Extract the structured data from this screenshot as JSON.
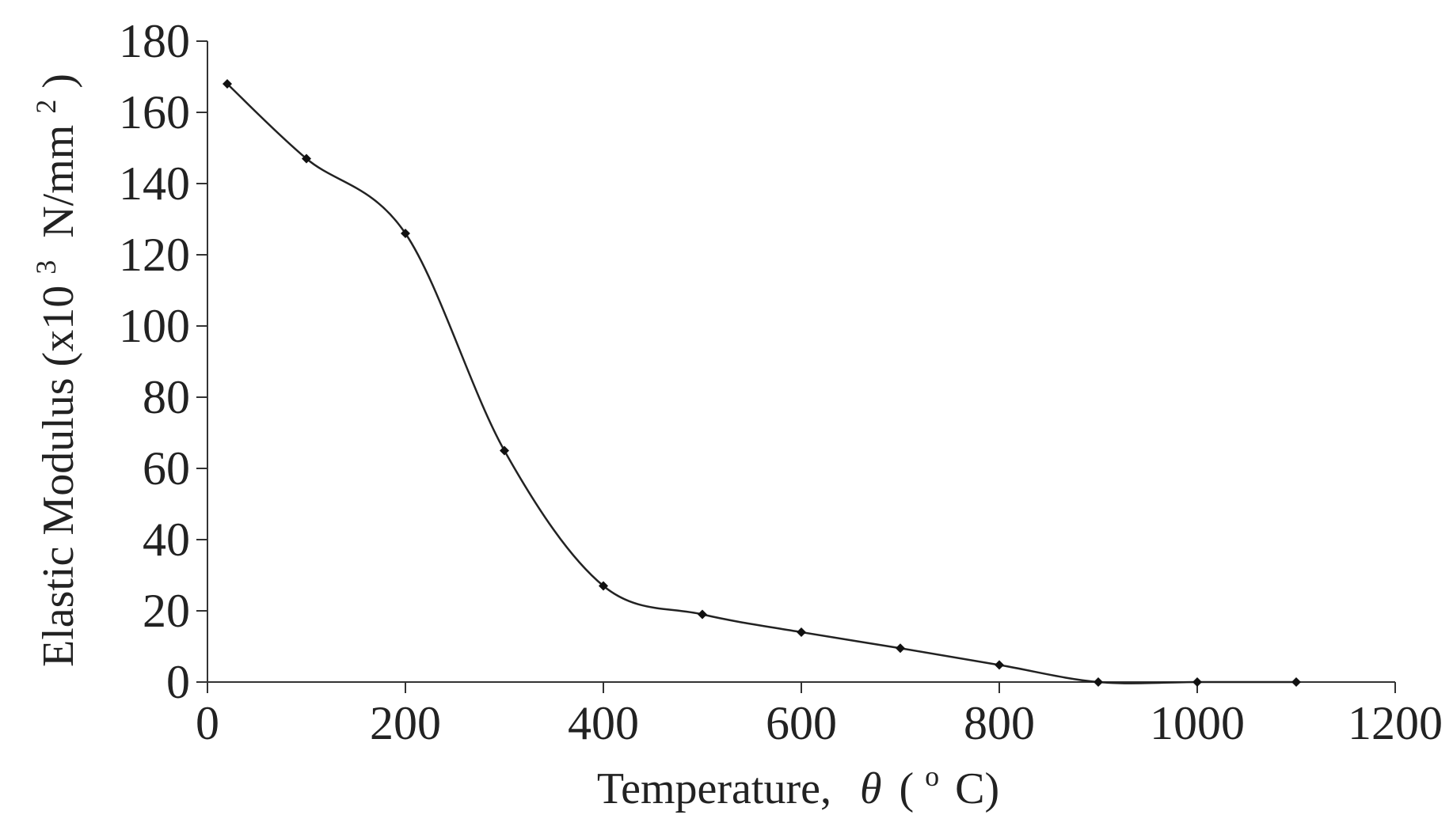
{
  "chart_data": {
    "type": "line",
    "title": "",
    "xlabel": "Temperature,",
    "xlabel_symbol": "θ",
    "xlabel_unit_open": "(",
    "xlabel_unit_sup": "o",
    "xlabel_unit_main": "C)",
    "ylabel_main": "Elastic Modulus (x10",
    "ylabel_sup1": "3",
    "ylabel_mid": " N/mm",
    "ylabel_sup2": "2",
    "ylabel_close": ")",
    "xlim": [
      0,
      1200
    ],
    "ylim": [
      0,
      180
    ],
    "xticks": [
      0,
      200,
      400,
      600,
      800,
      1000,
      1200
    ],
    "yticks": [
      0,
      20,
      40,
      60,
      80,
      100,
      120,
      140,
      160,
      180
    ],
    "grid": false,
    "legend": "none",
    "x": [
      20,
      100,
      200,
      300,
      400,
      500,
      600,
      700,
      800,
      900,
      1000,
      1100
    ],
    "series": [
      {
        "values": [
          168,
          147,
          126,
          65,
          27,
          19,
          14,
          9.5,
          4.8,
          0,
          0,
          0
        ]
      }
    ],
    "colors": {
      "line": "#222222",
      "marker": "#111111",
      "axis": "#333333",
      "zero_line": "#b8b8b8"
    }
  }
}
